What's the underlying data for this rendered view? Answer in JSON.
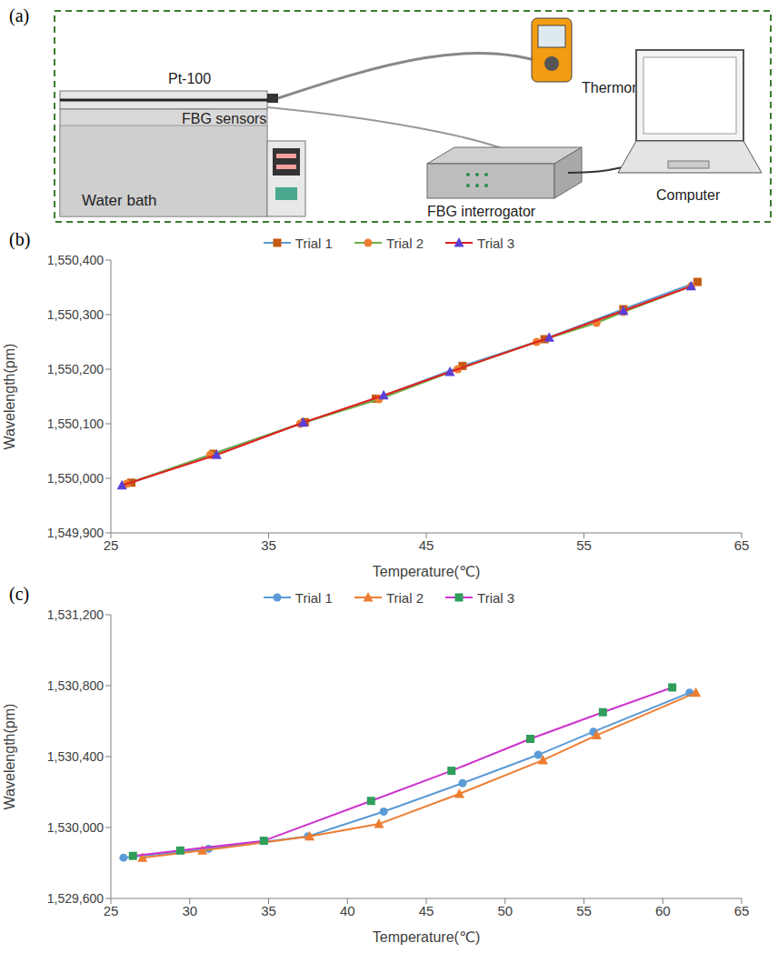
{
  "diagram": {
    "label": "(a)",
    "nodes": {
      "water_bath": "Water bath",
      "pt100": "Pt-100",
      "fbg_sensors": "FBG sensors",
      "thermometer": "Thermometer",
      "interrogator": "FBG interrogator",
      "computer": "Computer"
    }
  },
  "chart_data": [
    {
      "label": "(b)",
      "type": "line",
      "x_label": "Temperature(℃)",
      "y_label": "Wavelength(pm)",
      "xlim": [
        25,
        65
      ],
      "xticks": [
        25,
        35,
        45,
        55,
        65
      ],
      "ylim": [
        1549900,
        1550400
      ],
      "yticks": [
        {
          "value": 1549900,
          "label": "1,549,900"
        },
        {
          "value": 1550000,
          "label": "1,550,000"
        },
        {
          "value": 1550100,
          "label": "1,550,100"
        },
        {
          "value": 1550200,
          "label": "1,550,200"
        },
        {
          "value": 1550300,
          "label": "1,550,300"
        },
        {
          "value": 1550400,
          "label": "1,550,400"
        }
      ],
      "grid": false,
      "legend": "top",
      "series": [
        {
          "name": "Trial 1",
          "color": "#5b9bd5",
          "marker": "square",
          "x": [
            26.3,
            31.5,
            37.3,
            41.8,
            47.3,
            52.5,
            57.5,
            62.2
          ],
          "values": [
            1549992,
            1550045,
            1550103,
            1550146,
            1550206,
            1550255,
            1550310,
            1550360
          ]
        },
        {
          "name": "Trial 2",
          "color": "#70ad47",
          "marker": "circle",
          "x": [
            26.0,
            31.3,
            37.0,
            42.0,
            47.0,
            52.0,
            55.8,
            57.5,
            61.8
          ],
          "values": [
            1549990,
            1550043,
            1550100,
            1550145,
            1550200,
            1550250,
            1550285,
            1550305,
            1550352
          ]
        },
        {
          "name": "Trial 3",
          "color": "#e02020",
          "marker": "triangle",
          "x": [
            25.7,
            31.7,
            37.2,
            42.3,
            46.5,
            52.8,
            57.5,
            61.8
          ],
          "values": [
            1549987,
            1550043,
            1550102,
            1550152,
            1550195,
            1550258,
            1550307,
            1550352
          ]
        }
      ]
    },
    {
      "label": "(c)",
      "type": "line",
      "x_label": "Temperature(℃)",
      "y_label": "Wavelength(pm)",
      "xlim": [
        25,
        65
      ],
      "xticks": [
        25,
        30,
        35,
        40,
        45,
        50,
        55,
        60,
        65
      ],
      "ylim": [
        1529600,
        1531200
      ],
      "yticks": [
        {
          "value": 1529600,
          "label": "1,529,600"
        },
        {
          "value": 1530000,
          "label": "1,530,000"
        },
        {
          "value": 1530400,
          "label": "1,530,400"
        },
        {
          "value": 1530800,
          "label": "1,530,800"
        },
        {
          "value": 1531200,
          "label": "1,531,200"
        }
      ],
      "grid": false,
      "legend": "top",
      "series": [
        {
          "name": "Trial 1",
          "color": "#5b9bd5",
          "marker": "circle",
          "x": [
            25.8,
            31.2,
            37.5,
            42.3,
            47.3,
            52.1,
            55.6,
            61.7
          ],
          "values": [
            1529830,
            1529880,
            1529950,
            1530090,
            1530250,
            1530410,
            1530540,
            1530760
          ]
        },
        {
          "name": "Trial 2",
          "color": "#ed7d31",
          "marker": "triangle",
          "x": [
            27.0,
            30.8,
            37.6,
            42.0,
            47.1,
            52.4,
            55.8,
            62.1
          ],
          "values": [
            1529830,
            1529870,
            1529950,
            1530020,
            1530190,
            1530380,
            1530520,
            1530760
          ]
        },
        {
          "name": "Trial 3",
          "color": "#cc33cc",
          "marker": "square",
          "x": [
            26.4,
            29.4,
            34.7,
            41.5,
            46.6,
            51.6,
            56.2,
            60.6
          ],
          "values": [
            1529840,
            1529870,
            1529925,
            1530150,
            1530320,
            1530500,
            1530650,
            1530790
          ]
        }
      ]
    }
  ]
}
